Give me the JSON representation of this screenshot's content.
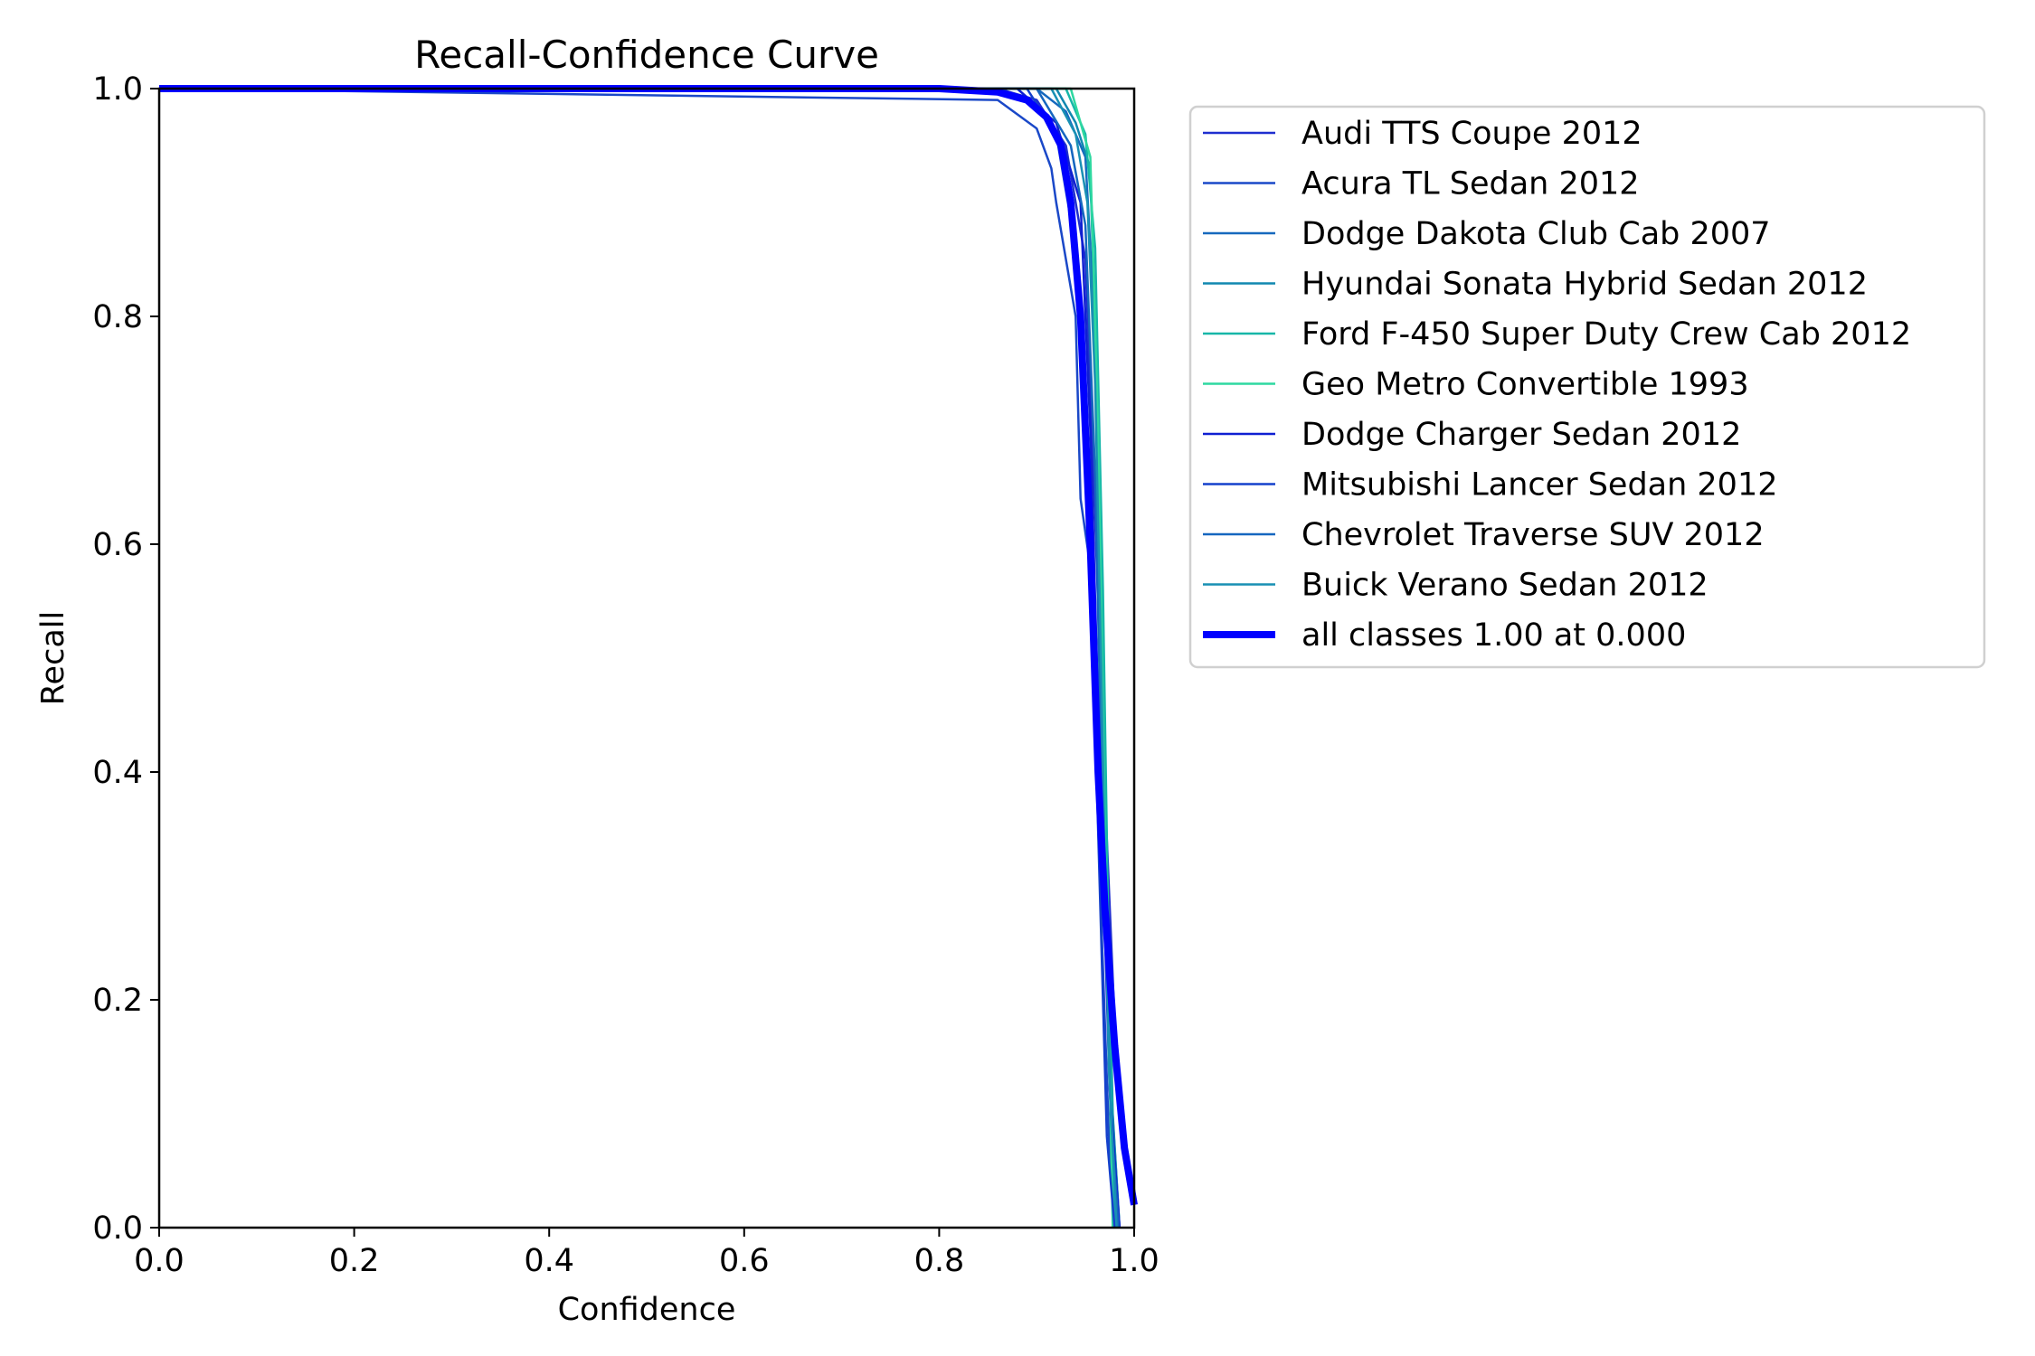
{
  "chart_data": {
    "type": "line",
    "title": "Recall-Confidence Curve",
    "xlabel": "Confidence",
    "ylabel": "Recall",
    "xlim": [
      0.0,
      1.0
    ],
    "ylim": [
      0.0,
      1.0
    ],
    "xticks": [
      "0.0",
      "0.2",
      "0.4",
      "0.6",
      "0.8",
      "1.0"
    ],
    "yticks": [
      "0.0",
      "0.2",
      "0.4",
      "0.6",
      "0.8",
      "1.0"
    ],
    "grid": false,
    "legend_position": "outside-top-right",
    "series": [
      {
        "name": "Audi TTS Coupe 2012",
        "color": "#1f2fcf",
        "x": [
          0,
          0.86,
          0.9,
          0.93,
          0.95,
          0.96,
          0.97,
          0.98,
          0.99,
          1.0
        ],
        "y": [
          1.0,
          1.0,
          0.99,
          0.95,
          0.85,
          0.62,
          0.38,
          0.18,
          0.06,
          0.02
        ]
      },
      {
        "name": "Acura TL Sedan 2012",
        "color": "#1a48c8",
        "x": [
          0,
          0.86,
          0.9,
          0.915,
          0.92,
          0.94,
          0.945,
          0.955,
          0.965,
          0.975,
          0.985
        ],
        "y": [
          1.0,
          0.99,
          0.965,
          0.93,
          0.9,
          0.8,
          0.64,
          0.58,
          0.3,
          0.06,
          0.0
        ]
      },
      {
        "name": "Dodge Dakota Club Cab 2007",
        "color": "#1669be",
        "x": [
          0,
          0.9,
          0.93,
          0.95,
          0.96,
          0.965,
          0.975,
          0.985
        ],
        "y": [
          1.0,
          1.0,
          0.98,
          0.94,
          0.78,
          0.5,
          0.14,
          0.0
        ]
      },
      {
        "name": "Hyundai Sonata Hybrid Sedan 2012",
        "color": "#1188b0",
        "x": [
          0,
          0.92,
          0.94,
          0.955,
          0.962,
          0.97,
          0.978,
          0.985
        ],
        "y": [
          1.0,
          1.0,
          0.97,
          0.93,
          0.72,
          0.4,
          0.1,
          0.0
        ]
      },
      {
        "name": "Ford F-450 Super Duty Crew Cab 2012",
        "color": "#17b7a8",
        "x": [
          0,
          0.93,
          0.95,
          0.96,
          0.968,
          0.975,
          0.98
        ],
        "y": [
          1.0,
          1.0,
          0.96,
          0.86,
          0.56,
          0.18,
          0.0
        ]
      },
      {
        "name": "Geo Metro Convertible 1993",
        "color": "#2ed8a0",
        "x": [
          0,
          0.935,
          0.955,
          0.963,
          0.97,
          0.978
        ],
        "y": [
          1.0,
          1.0,
          0.94,
          0.7,
          0.34,
          0.0
        ]
      },
      {
        "name": "Dodge Charger Sedan 2012",
        "color": "#0f1fd2",
        "x": [
          0,
          0.88,
          0.92,
          0.945,
          0.955,
          0.965,
          0.975,
          0.985
        ],
        "y": [
          1.0,
          1.0,
          0.97,
          0.9,
          0.7,
          0.4,
          0.12,
          0.0
        ]
      },
      {
        "name": "Mitsubishi Lancer Sedan 2012",
        "color": "#1440cc",
        "x": [
          0,
          0.89,
          0.92,
          0.94,
          0.955,
          0.962,
          0.972,
          0.98
        ],
        "y": [
          1.0,
          1.0,
          0.96,
          0.86,
          0.6,
          0.38,
          0.08,
          0.0
        ]
      },
      {
        "name": "Chevrolet Traverse SUV 2012",
        "color": "#1566bf",
        "x": [
          0,
          0.9,
          0.935,
          0.95,
          0.96,
          0.968,
          0.976,
          0.984
        ],
        "y": [
          1.0,
          1.0,
          0.95,
          0.88,
          0.66,
          0.34,
          0.1,
          0.0
        ]
      },
      {
        "name": "Buick Verano Sedan 2012",
        "color": "#1990b4",
        "x": [
          0,
          0.915,
          0.94,
          0.952,
          0.96,
          0.966,
          0.974,
          0.982
        ],
        "y": [
          1.0,
          1.0,
          0.96,
          0.9,
          0.74,
          0.5,
          0.14,
          0.0
        ]
      }
    ],
    "aggregate": {
      "name": "all classes 1.00 at 0.000",
      "color": "#0000ff",
      "x": [
        0,
        0.8,
        0.86,
        0.89,
        0.91,
        0.925,
        0.935,
        0.945,
        0.955,
        0.963,
        0.97,
        0.98,
        0.99,
        1.0
      ],
      "y": [
        1.0,
        1.0,
        0.997,
        0.99,
        0.975,
        0.95,
        0.9,
        0.8,
        0.6,
        0.4,
        0.28,
        0.16,
        0.07,
        0.02
      ]
    }
  }
}
